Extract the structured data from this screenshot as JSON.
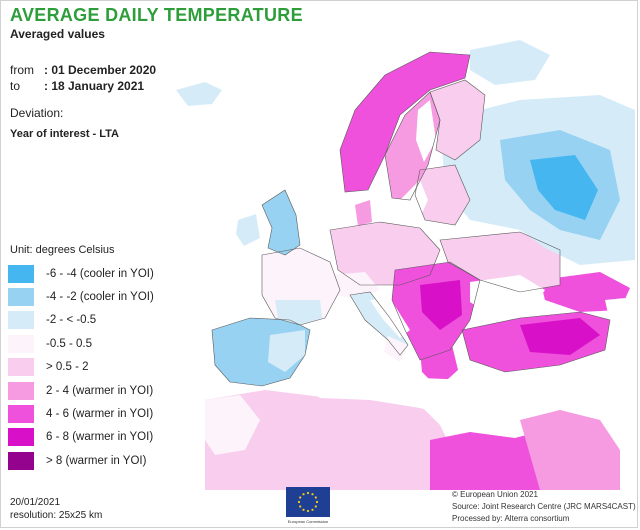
{
  "header": {
    "title": "AVERAGE DAILY TEMPERATURE",
    "subtitle": "Averaged values"
  },
  "period": {
    "from_label": "from",
    "from_value": ": 01 December 2020",
    "to_label": "to",
    "to_value": ": 18 January 2021"
  },
  "deviation": {
    "label": "Deviation:",
    "value": "Year of interest - LTA"
  },
  "legend": {
    "unit": "Unit:  degrees Celsius",
    "classes": [
      {
        "label": "-6 - -4 (cooler in YOI)",
        "color": "#45b6ef"
      },
      {
        "label": "-4 - -2 (cooler in YOI)",
        "color": "#97d2f3"
      },
      {
        "label": "-2 - < -0.5",
        "color": "#d5ecf8"
      },
      {
        "label": "-0.5 - 0.5",
        "color": "#fdf3fb"
      },
      {
        "label": "> 0.5 - 2",
        "color": "#f8cdee"
      },
      {
        "label": "2 - 4 (warmer in YOI)",
        "color": "#f69ae2"
      },
      {
        "label": "4 - 6 (warmer in YOI)",
        "color": "#ef50dc"
      },
      {
        "label": "6 - 8 (warmer in YOI)",
        "color": "#d810c8"
      },
      {
        "label": "> 8 (warmer in YOI)",
        "color": "#93038e"
      }
    ]
  },
  "footer": {
    "date": "20/01/2021",
    "resolution": "resolution:  25x25 km",
    "copyright": "© European Union 2021",
    "source": "Source: Joint Research Centre (JRC MARS4CAST)",
    "processed": "Processed by: Alterra consortium"
  },
  "logo": {
    "icon": "eu-flag-icon",
    "caption": "European Commission"
  },
  "colors": {
    "title": "#2e9e3a",
    "water": "#ffffff",
    "border": "#5a5a5a"
  }
}
